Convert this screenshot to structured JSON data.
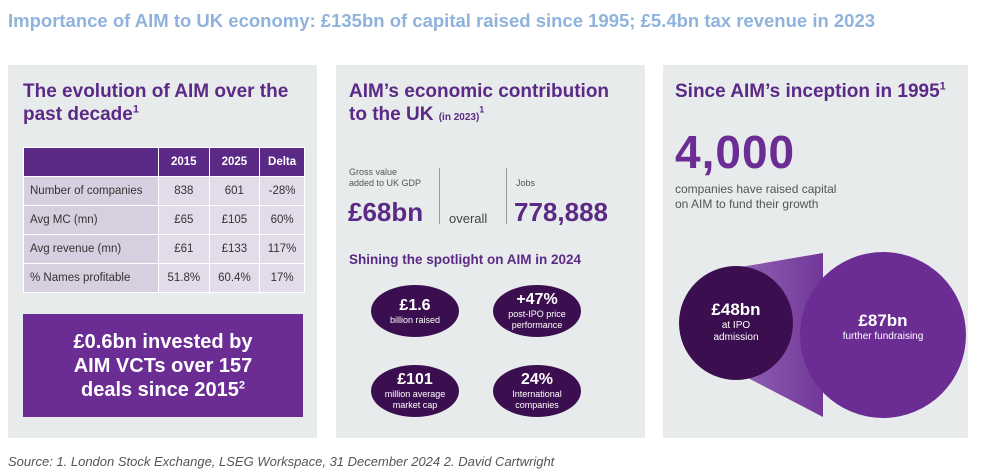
{
  "headline": "Importance of AIM to UK economy: £135bn of capital raised since 1995; £5.4bn tax revenue in 2023",
  "panel1": {
    "title_line1": "The evolution of AIM over the",
    "title_line2": "past decade",
    "title_sup": "1",
    "table": {
      "headers": [
        "",
        "2015",
        "2025",
        "Delta"
      ],
      "rows": [
        [
          "Number of companies",
          "838",
          "601",
          "-28%"
        ],
        [
          "Avg MC (mn)",
          "£65",
          "£105",
          "60%"
        ],
        [
          "Avg revenue (mn)",
          "£61",
          "£133",
          "117%"
        ],
        [
          "% Names profitable",
          "51.8%",
          "60.4%",
          "17%"
        ]
      ]
    },
    "vct_line1": "£0.6bn invested by",
    "vct_line2": "AIM VCTs over 157",
    "vct_line3": "deals since 2015",
    "vct_sup": "2"
  },
  "panel2": {
    "title_line1": "AIM’s economic contribution",
    "title_line2": "to the UK",
    "title_aside": "(in 2023)",
    "title_sup": "1",
    "gva_label_line1": "Gross value",
    "gva_label_line2": "added to UK GDP",
    "gva_value": "£68bn",
    "overall": "overall",
    "jobs_label": "Jobs",
    "jobs_value": "778,888",
    "spotlight_title": "Shining the spotlight on AIM in 2024",
    "pills": [
      {
        "value": "£1.6",
        "label_line1": "billion raised",
        "label_line2": ""
      },
      {
        "value": "+47%",
        "label_line1": "post-IPO price",
        "label_line2": "performance"
      },
      {
        "value": "£101",
        "label_line1": "million average",
        "label_line2": "market cap"
      },
      {
        "value": "24%",
        "label_line1": "International",
        "label_line2": "companies"
      }
    ]
  },
  "panel3": {
    "title": "Since AIM’s inception in 1995",
    "title_sup": "1",
    "big_number": "4,000",
    "desc_line1": "companies have raised capital",
    "desc_line2": "on AIM to fund their growth",
    "small_circle": {
      "value": "£48bn",
      "label_line1": "at IPO",
      "label_line2": "admission"
    },
    "large_circle": {
      "value": "£87bn",
      "label_line1": "further fundraising"
    }
  },
  "source": "Source: 1. London Stock Exchange, LSEG Workspace, 31 December 2024 2. David Cartwright",
  "colors": {
    "headline": "#8fb3dc",
    "purple": "#5b2a86",
    "dark_purple": "#3b0f4f",
    "bright_purple": "#6b2d94",
    "panel_bg": "#e8ebec"
  }
}
